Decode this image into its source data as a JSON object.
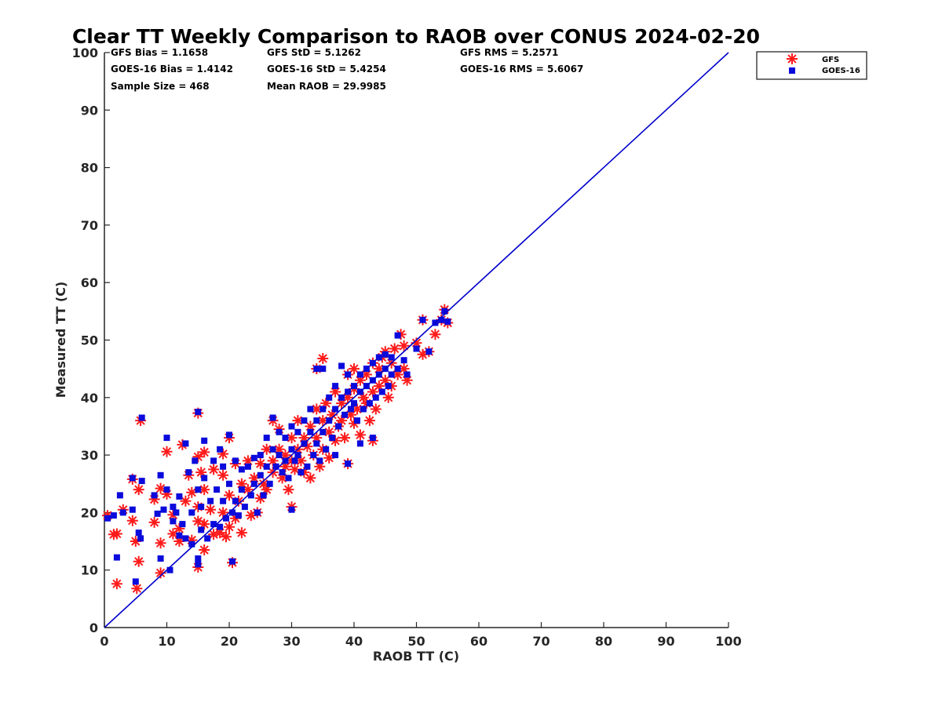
{
  "chart_data": {
    "type": "scatter",
    "title": "Clear TT Weekly Comparison to RAOB over CONUS 2024-02-20",
    "xlabel": "RAOB TT (C)",
    "ylabel": "Measured TT (C)",
    "xlim": [
      0,
      100
    ],
    "ylim": [
      0,
      100
    ],
    "xticks": [
      "0",
      "10",
      "20",
      "30",
      "40",
      "50",
      "60",
      "70",
      "80",
      "90",
      "100"
    ],
    "yticks": [
      "0",
      "10",
      "20",
      "30",
      "40",
      "50",
      "60",
      "70",
      "80",
      "90",
      "100"
    ],
    "grid": false,
    "legend_position": "outside top-right",
    "reference_line": {
      "name": "1:1 line",
      "from": [
        0,
        0
      ],
      "to": [
        100,
        100
      ],
      "color": "#0000cc"
    },
    "stats": {
      "row1": [
        "GFS Bias = 1.1658",
        "GFS StD = 5.1262",
        "GFS RMS = 5.2571"
      ],
      "row2": [
        "GOES-16 Bias = 1.4142",
        "GOES-16 StD = 5.4254",
        "GOES-16 RMS = 5.6067"
      ],
      "row3": [
        "Sample Size = 468",
        "Mean RAOB = 29.9985"
      ]
    },
    "series": [
      {
        "name": "GFS",
        "marker": "asterisk",
        "color": "#ff1a1a",
        "points": [
          [
            0.5,
            19.5
          ],
          [
            1.5,
            16.2
          ],
          [
            2,
            16.3
          ],
          [
            2,
            7.6
          ],
          [
            3,
            20.5
          ],
          [
            4.5,
            18.6
          ],
          [
            5,
            15
          ],
          [
            5.2,
            6.8
          ],
          [
            5.5,
            11.5
          ],
          [
            5.5,
            24
          ],
          [
            4.5,
            25.8
          ],
          [
            5.8,
            36
          ],
          [
            8,
            22.3
          ],
          [
            8,
            18.3
          ],
          [
            9,
            14.7
          ],
          [
            9,
            24.2
          ],
          [
            9,
            9.5
          ],
          [
            10,
            30.6
          ],
          [
            10,
            23.2
          ],
          [
            11,
            16.3
          ],
          [
            11,
            19.6
          ],
          [
            12,
            17.2
          ],
          [
            12,
            15
          ],
          [
            13,
            22
          ],
          [
            12.5,
            31.8
          ],
          [
            13.5,
            26.5
          ],
          [
            14,
            23.5
          ],
          [
            14,
            15.2
          ],
          [
            15,
            37.3
          ],
          [
            15,
            29.7
          ],
          [
            15,
            18.5
          ],
          [
            15,
            21
          ],
          [
            15,
            10.5
          ],
          [
            15.5,
            27
          ],
          [
            16,
            30.5
          ],
          [
            16,
            24
          ],
          [
            16,
            18
          ],
          [
            16,
            13.5
          ],
          [
            17,
            20.5
          ],
          [
            17.5,
            27.5
          ],
          [
            17.5,
            16.2
          ],
          [
            18.5,
            16.5
          ],
          [
            19,
            30.2
          ],
          [
            19,
            26.5
          ],
          [
            19,
            20
          ],
          [
            19.5,
            15.8
          ],
          [
            20,
            33
          ],
          [
            20,
            23
          ],
          [
            20,
            17.5
          ],
          [
            20.5,
            11.3
          ],
          [
            21,
            28.5
          ],
          [
            21,
            19
          ],
          [
            21.5,
            22
          ],
          [
            22,
            25
          ],
          [
            22,
            16.5
          ],
          [
            23,
            24
          ],
          [
            23,
            29
          ],
          [
            23.5,
            19.5
          ],
          [
            24,
            26
          ],
          [
            24.5,
            20
          ],
          [
            25,
            22.5
          ],
          [
            25,
            28.5
          ],
          [
            25.5,
            25
          ],
          [
            26,
            31
          ],
          [
            26,
            24
          ],
          [
            27,
            29
          ],
          [
            27,
            36
          ],
          [
            27,
            27
          ],
          [
            28,
            34.5
          ],
          [
            28,
            31
          ],
          [
            28.5,
            26
          ],
          [
            29,
            30
          ],
          [
            29,
            28
          ],
          [
            29.5,
            24
          ],
          [
            30,
            33
          ],
          [
            30,
            29
          ],
          [
            30,
            21
          ],
          [
            30.5,
            27.5
          ],
          [
            31,
            36
          ],
          [
            31,
            31
          ],
          [
            31.5,
            29
          ],
          [
            32,
            33
          ],
          [
            32,
            27
          ],
          [
            32.5,
            31.5
          ],
          [
            33,
            35
          ],
          [
            33,
            26
          ],
          [
            33.5,
            30
          ],
          [
            34,
            45
          ],
          [
            34,
            38
          ],
          [
            34,
            33
          ],
          [
            34.5,
            28
          ],
          [
            35,
            46.8
          ],
          [
            35,
            36
          ],
          [
            35,
            31
          ],
          [
            35.5,
            39
          ],
          [
            36,
            34
          ],
          [
            36,
            29.5
          ],
          [
            36.5,
            37
          ],
          [
            37,
            41
          ],
          [
            37,
            32.5
          ],
          [
            37.5,
            35
          ],
          [
            38,
            39
          ],
          [
            38,
            36
          ],
          [
            38.5,
            33
          ],
          [
            39,
            44
          ],
          [
            39,
            40
          ],
          [
            39,
            28.5
          ],
          [
            39.5,
            37
          ],
          [
            40,
            45
          ],
          [
            40,
            41.5
          ],
          [
            40,
            35.5
          ],
          [
            40.5,
            38
          ],
          [
            41,
            43
          ],
          [
            41,
            33.5
          ],
          [
            41.5,
            40
          ],
          [
            42,
            44
          ],
          [
            42,
            39
          ],
          [
            42.5,
            36
          ],
          [
            43,
            46
          ],
          [
            43,
            41
          ],
          [
            43,
            32.5
          ],
          [
            43.5,
            38
          ],
          [
            44,
            45
          ],
          [
            44,
            42
          ],
          [
            44.5,
            47
          ],
          [
            45,
            48
          ],
          [
            45,
            43
          ],
          [
            45.5,
            40
          ],
          [
            46,
            46
          ],
          [
            46,
            42
          ],
          [
            46.5,
            48.5
          ],
          [
            47,
            44
          ],
          [
            47.5,
            51
          ],
          [
            48,
            49
          ],
          [
            48,
            45
          ],
          [
            48.5,
            43
          ],
          [
            50,
            49.5
          ],
          [
            51,
            47.5
          ],
          [
            51,
            53.5
          ],
          [
            52,
            48
          ],
          [
            53,
            51
          ],
          [
            54,
            53.5
          ],
          [
            54.5,
            55.3
          ],
          [
            55,
            53
          ]
        ]
      },
      {
        "name": "GOES-16",
        "marker": "square",
        "color": "#0a0adc",
        "points": [
          [
            0.5,
            19
          ],
          [
            1.5,
            19.5
          ],
          [
            2,
            12.2
          ],
          [
            2.5,
            23
          ],
          [
            3,
            20
          ],
          [
            4.5,
            26
          ],
          [
            4.5,
            20.5
          ],
          [
            5,
            8
          ],
          [
            5.5,
            16.5
          ],
          [
            5.8,
            15.5
          ],
          [
            6,
            25.5
          ],
          [
            6,
            36.5
          ],
          [
            8,
            23
          ],
          [
            8.5,
            19.8
          ],
          [
            9,
            26.5
          ],
          [
            9,
            12
          ],
          [
            9.5,
            20.5
          ],
          [
            10,
            33
          ],
          [
            10,
            24
          ],
          [
            10.5,
            10
          ],
          [
            11,
            21
          ],
          [
            11,
            18.5
          ],
          [
            11.5,
            20
          ],
          [
            12,
            22.8
          ],
          [
            12,
            16
          ],
          [
            12.5,
            18
          ],
          [
            13,
            32
          ],
          [
            13,
            15.5
          ],
          [
            13.5,
            27
          ],
          [
            14,
            14.5
          ],
          [
            14,
            20
          ],
          [
            14.5,
            29
          ],
          [
            15,
            37.5
          ],
          [
            15,
            24
          ],
          [
            15,
            12
          ],
          [
            15,
            11
          ],
          [
            15.5,
            21
          ],
          [
            15.5,
            17
          ],
          [
            16,
            32.5
          ],
          [
            16,
            26
          ],
          [
            16.5,
            15.5
          ],
          [
            17,
            22
          ],
          [
            17.5,
            29
          ],
          [
            17.5,
            18
          ],
          [
            18,
            24
          ],
          [
            18.5,
            31
          ],
          [
            18.5,
            17.5
          ],
          [
            19,
            28
          ],
          [
            19,
            22
          ],
          [
            19.5,
            19
          ],
          [
            20,
            33.5
          ],
          [
            20,
            25
          ],
          [
            20.5,
            11.5
          ],
          [
            20.5,
            20
          ],
          [
            21,
            29
          ],
          [
            21,
            22
          ],
          [
            21.5,
            19.5
          ],
          [
            22,
            27.5
          ],
          [
            22,
            24
          ],
          [
            22.5,
            21
          ],
          [
            23,
            28
          ],
          [
            23.5,
            23
          ],
          [
            24,
            29.5
          ],
          [
            24,
            25
          ],
          [
            24.5,
            20
          ],
          [
            25,
            30
          ],
          [
            25,
            26.5
          ],
          [
            25.5,
            23
          ],
          [
            26,
            33
          ],
          [
            26,
            28
          ],
          [
            26.5,
            25
          ],
          [
            27,
            31
          ],
          [
            27,
            36.5
          ],
          [
            27.5,
            28
          ],
          [
            28,
            34
          ],
          [
            28,
            30
          ],
          [
            28.5,
            27
          ],
          [
            29,
            33
          ],
          [
            29,
            29
          ],
          [
            29.5,
            26
          ],
          [
            30,
            35
          ],
          [
            30,
            31
          ],
          [
            30,
            20.5
          ],
          [
            30.5,
            29
          ],
          [
            31,
            34
          ],
          [
            31,
            30
          ],
          [
            31.5,
            27
          ],
          [
            32,
            36
          ],
          [
            32,
            32
          ],
          [
            32.5,
            28
          ],
          [
            33,
            38
          ],
          [
            33,
            34
          ],
          [
            33.5,
            30
          ],
          [
            34,
            45
          ],
          [
            34,
            36
          ],
          [
            34,
            32
          ],
          [
            34.5,
            29
          ],
          [
            35,
            45
          ],
          [
            35,
            38
          ],
          [
            35,
            34
          ],
          [
            35.5,
            31
          ],
          [
            36,
            40
          ],
          [
            36,
            36
          ],
          [
            36.5,
            33
          ],
          [
            37,
            42
          ],
          [
            37,
            38
          ],
          [
            37,
            30
          ],
          [
            37.5,
            35
          ],
          [
            38,
            45.5
          ],
          [
            38,
            40
          ],
          [
            38.5,
            37
          ],
          [
            39,
            44
          ],
          [
            39,
            41
          ],
          [
            39,
            28.5
          ],
          [
            39.5,
            38
          ],
          [
            40,
            42
          ],
          [
            40,
            39
          ],
          [
            40.5,
            36
          ],
          [
            41,
            44
          ],
          [
            41,
            41
          ],
          [
            41,
            32
          ],
          [
            41.5,
            38
          ],
          [
            42,
            45
          ],
          [
            42,
            42
          ],
          [
            42.5,
            39
          ],
          [
            43,
            46
          ],
          [
            43,
            43
          ],
          [
            43,
            33
          ],
          [
            43.5,
            40
          ],
          [
            44,
            47
          ],
          [
            44,
            44
          ],
          [
            44.5,
            41
          ],
          [
            45,
            47.5
          ],
          [
            45,
            45
          ],
          [
            45.5,
            42
          ],
          [
            46,
            47
          ],
          [
            46,
            44
          ],
          [
            47,
            50.8
          ],
          [
            47,
            45
          ],
          [
            48,
            46.5
          ],
          [
            48.5,
            44
          ],
          [
            50,
            48.5
          ],
          [
            51,
            53.5
          ],
          [
            52,
            48
          ],
          [
            53,
            53
          ],
          [
            54,
            53.5
          ],
          [
            54.5,
            55
          ],
          [
            55,
            53.2
          ]
        ]
      }
    ]
  }
}
